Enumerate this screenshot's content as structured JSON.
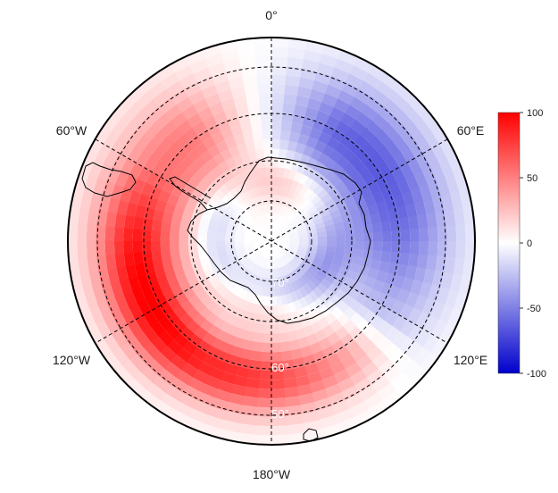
{
  "map": {
    "projection": "south-polar-stereographic",
    "variable_range": [
      -100,
      100
    ],
    "colormap": [
      "#0000cc",
      "#ffffff",
      "#ff0000"
    ],
    "longitude_labels": [
      {
        "name": "lon-label-0",
        "text": "0°",
        "lon": 0
      },
      {
        "name": "lon-label-60e",
        "text": "60°E",
        "lon": 60
      },
      {
        "name": "lon-label-120e",
        "text": "120°E",
        "lon": 120
      },
      {
        "name": "lon-label-180w",
        "text": "180°W",
        "lon": 180
      },
      {
        "name": "lon-label-120w",
        "text": "120°W",
        "lon": -120
      },
      {
        "name": "lon-label-60w",
        "text": "60°W",
        "lon": -60
      }
    ],
    "latitude_labels": [
      {
        "name": "lat-label-70",
        "text": "70°",
        "lat": -70
      },
      {
        "name": "lat-label-60",
        "text": "60°",
        "lat": -60
      },
      {
        "name": "lat-label-50",
        "text": "50°",
        "lat": -50
      }
    ],
    "colorbar_ticks": [
      "100",
      "50",
      "0",
      "-50",
      "-100"
    ],
    "colorbar_values": [
      100,
      50,
      0,
      -50,
      -100
    ],
    "colorbar_colors": [
      "#ff0000",
      "#ffffff",
      "#0000cc"
    ]
  }
}
